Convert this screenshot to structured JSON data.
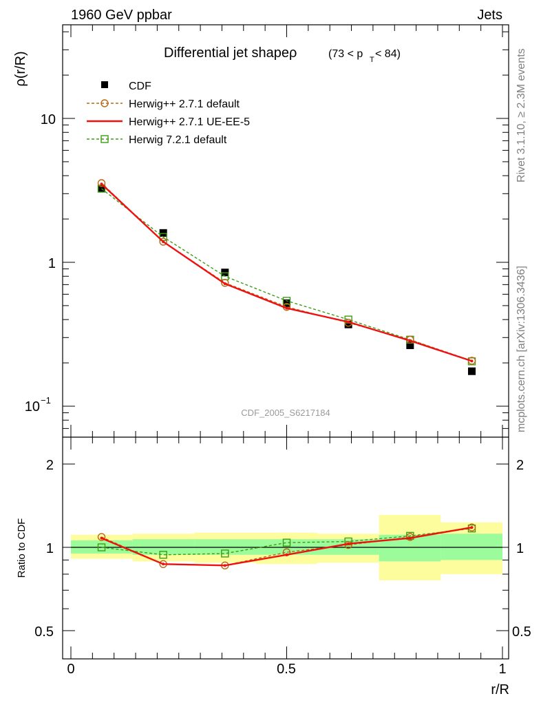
{
  "header": {
    "left": "1960 GeV ppbar",
    "right": "Jets"
  },
  "side": {
    "rivet": "Rivet 3.1.10, ≥ 2.3M events",
    "mcplots": "mcplots.cern.ch [arXiv:1306.3436]"
  },
  "main": {
    "title_main": "Differential jet shapeρ",
    "title_range_a": "(73 < p",
    "title_range_sub": "T",
    "title_range_b": " < 84)",
    "ylabel": "ρ(r/R)",
    "ytick_labels": [
      "10",
      "1"
    ],
    "ytick_exp_base": "10",
    "ytick_exp": "−1",
    "watermark": "CDF_2005_S6217184"
  },
  "ratio": {
    "ylabel": "Ratio to CDF",
    "ytick_labels": [
      "2",
      "1",
      "0.5"
    ],
    "xtick_labels": [
      "0",
      "0.5",
      "1"
    ],
    "xlabel": "r/R"
  },
  "legend": [
    {
      "label": "CDF"
    },
    {
      "label": "Herwig++ 2.7.1 default"
    },
    {
      "label": "Herwig++ 2.7.1 UE-EE-5"
    },
    {
      "label": "Herwig 7.2.1 default"
    }
  ],
  "colors": {
    "cdf": "#000000",
    "hw_default": "#b8670f",
    "hw_ueee5": "#ee1111",
    "hw7": "#3c9c14",
    "band_outer": "#fdfd9d",
    "band_inner": "#9cfc9c"
  },
  "chart_data": [
    {
      "type": "line",
      "panel": "main",
      "yscale": "log",
      "xlim": [
        -0.02,
        1.02
      ],
      "ylim": [
        0.065,
        45
      ],
      "x": [
        0.071,
        0.214,
        0.357,
        0.5,
        0.643,
        0.786,
        0.929
      ],
      "series": [
        {
          "name": "CDF",
          "style": "markers",
          "values": [
            3.25,
            1.6,
            0.85,
            0.52,
            0.37,
            0.265,
            0.175
          ]
        },
        {
          "name": "Herwig++ 2.7.1 default",
          "style": "dashed-circle",
          "values": [
            3.55,
            1.39,
            0.72,
            0.49,
            0.38,
            0.29,
            0.207
          ]
        },
        {
          "name": "Herwig++ 2.7.1 UE-EE-5",
          "style": "solid",
          "values": [
            3.5,
            1.39,
            0.71,
            0.48,
            0.385,
            0.285,
            0.206
          ]
        },
        {
          "name": "Herwig 7.2.1 default",
          "style": "dashed-square",
          "values": [
            3.25,
            1.5,
            0.8,
            0.54,
            0.4,
            0.29,
            0.205
          ]
        }
      ]
    },
    {
      "type": "line",
      "panel": "ratio",
      "yscale": "log",
      "xlim": [
        -0.02,
        1.02
      ],
      "ylim": [
        0.4,
        2.6
      ],
      "x": [
        0.071,
        0.214,
        0.357,
        0.5,
        0.643,
        0.786,
        0.929
      ],
      "bins": [
        [
          0,
          0.143
        ],
        [
          0.143,
          0.286
        ],
        [
          0.286,
          0.429
        ],
        [
          0.429,
          0.571
        ],
        [
          0.571,
          0.714
        ],
        [
          0.714,
          0.857
        ],
        [
          0.857,
          1.0
        ]
      ],
      "bands": {
        "outer": [
          [
            0.91,
            1.11
          ],
          [
            0.89,
            1.12
          ],
          [
            0.88,
            1.13
          ],
          [
            0.87,
            1.13
          ],
          [
            0.88,
            1.12
          ],
          [
            0.76,
            1.31
          ],
          [
            0.8,
            1.23
          ]
        ],
        "inner": [
          [
            0.95,
            1.06
          ],
          [
            0.94,
            1.07
          ],
          [
            0.94,
            1.07
          ],
          [
            0.94,
            1.07
          ],
          [
            0.94,
            1.07
          ],
          [
            0.89,
            1.11
          ],
          [
            0.9,
            1.12
          ]
        ]
      },
      "series": [
        {
          "name": "Herwig++ 2.7.1 default",
          "style": "dashed-circle",
          "values": [
            1.09,
            0.87,
            0.86,
            0.96,
            1.02,
            1.09,
            1.18
          ]
        },
        {
          "name": "Herwig++ 2.7.1 UE-EE-5",
          "style": "solid",
          "values": [
            1.08,
            0.87,
            0.86,
            0.94,
            1.03,
            1.08,
            1.18
          ]
        },
        {
          "name": "Herwig 7.2.1 default",
          "style": "dashed-square",
          "values": [
            1.0,
            0.94,
            0.95,
            1.04,
            1.05,
            1.1,
            1.17
          ]
        }
      ]
    }
  ]
}
